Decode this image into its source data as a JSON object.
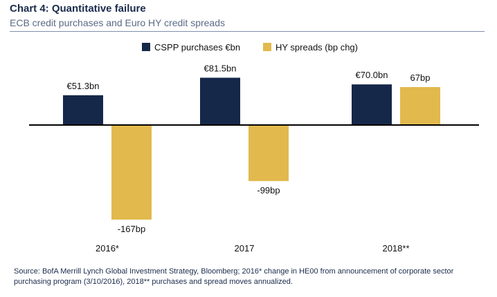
{
  "title": "Chart 4: Quantitative failure",
  "subtitle": "ECB credit purchases and Euro HY credit spreads",
  "source": "Source: BofA Merrill Lynch Global Investment Strategy, Bloomberg; 2016* change in HE00 from announcement of corporate sector purchasing program (3/10/2016), 2018** purchases and spread moves annualized.",
  "colors": {
    "purchases": "#15284a",
    "spreads": "#e1b94d"
  },
  "chart_data": {
    "type": "bar",
    "categories": [
      "2016*",
      "2017",
      "2018**"
    ],
    "series": [
      {
        "name": "CSPP purchases €bn",
        "values": [
          51.3,
          81.5,
          70.0
        ],
        "labels": [
          "€51.3bn",
          "€81.5bn",
          "€70.0bn"
        ]
      },
      {
        "name": "HY spreads (bp chg)",
        "values": [
          -167,
          -99,
          67
        ],
        "labels": [
          "-167bp",
          "-99bp",
          "67bp"
        ]
      }
    ],
    "legend_position": "top-center",
    "grid": false
  }
}
